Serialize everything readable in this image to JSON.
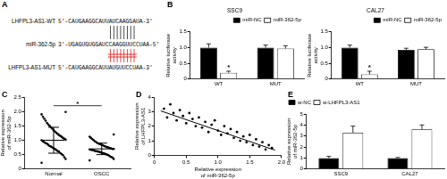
{
  "panel_A": {
    "panel": "A",
    "rows": [
      {
        "label": "LHFPL3-AS1-WT",
        "sequence": "5'-CAUGAAGGCAUUAUCAAGGAUA-3'"
      },
      {
        "label": "miR-362-5p",
        "sequence": "3'-UGAGUGUGGAUCCAAGGUUCCUAA-5'"
      },
      {
        "label": "LHFPL3-AS1-MUT",
        "sequence": "5'-CAUGAAGGCAUUAUGUUCCUAA-3'"
      }
    ]
  },
  "chart_data": [
    {
      "panel": "B",
      "type": "bar",
      "title": "SSC9",
      "categories": [
        "WT",
        "MUT"
      ],
      "series": [
        {
          "name": "miR-NC",
          "color": "#000000",
          "values": [
            1.0,
            1.0
          ],
          "errors": [
            0.12,
            0.08
          ]
        },
        {
          "name": "miR-362-5p",
          "color": "#ffffff",
          "values": [
            0.2,
            0.97
          ],
          "errors": [
            0.05,
            0.09
          ]
        }
      ],
      "y_label": "Relative luciferase activity",
      "ylim": [
        0,
        1.5
      ],
      "yticks": [
        0,
        0.5,
        {
          "value": 1,
          "label": "1.0"
        },
        1.5
      ],
      "grid": false,
      "legend": "top-right",
      "annotations": [
        {
          "text": "*",
          "category": "WT",
          "series": "miR-362-5p",
          "y": 0.32
        }
      ]
    },
    {
      "type": "bar",
      "title": "CAL27",
      "categories": [
        "WT",
        "MUT"
      ],
      "series": [
        {
          "name": "miR-NC",
          "color": "#000000",
          "values": [
            1.0,
            0.93
          ],
          "errors": [
            0.08,
            0.05
          ]
        },
        {
          "name": "miR-362-5p",
          "color": "#ffffff",
          "values": [
            0.15,
            0.95
          ],
          "errors": [
            0.1,
            0.06
          ]
        }
      ],
      "y_label": "Relative luciferase activity",
      "ylim": [
        0,
        1.5
      ],
      "yticks": [
        0,
        0.5,
        {
          "value": 1,
          "label": "1.0"
        },
        1.5
      ],
      "grid": false,
      "legend": "top-right",
      "annotations": [
        {
          "text": "*",
          "category": "WT",
          "series": "miR-362-5p",
          "y": 0.32
        }
      ]
    },
    {
      "panel": "C",
      "type": "scatter",
      "categories": [
        "Normal",
        "OSCC"
      ],
      "values": [
        [
          0.22,
          0.35,
          0.41,
          0.48,
          0.52,
          0.55,
          0.6,
          0.63,
          0.66,
          0.7,
          0.72,
          0.75,
          0.78,
          0.8,
          0.84,
          0.88,
          0.9,
          0.93,
          0.96,
          1.0,
          1.02,
          1.05,
          1.08,
          1.12,
          1.15,
          1.18,
          1.22,
          1.26,
          1.3,
          1.35,
          1.4,
          1.45,
          1.5,
          1.55,
          1.6,
          1.68,
          1.75,
          1.82,
          1.9,
          1.98
        ],
        [
          0.3,
          0.35,
          0.4,
          0.42,
          0.45,
          0.48,
          0.5,
          0.52,
          0.54,
          0.55,
          0.57,
          0.58,
          0.6,
          0.61,
          0.62,
          0.63,
          0.65,
          0.66,
          0.67,
          0.68,
          0.7,
          0.7,
          0.72,
          0.73,
          0.75,
          0.76,
          0.78,
          0.8,
          0.82,
          0.84,
          0.86,
          0.88,
          0.9,
          0.93,
          0.96,
          1.0,
          1.04,
          1.08,
          1.12,
          1.2
        ]
      ],
      "mean": [
        1.0,
        0.7
      ],
      "sd": [
        0.45,
        0.2
      ],
      "color": "#000000",
      "marker": "circle",
      "y_label": "Relative expression of miR-362-5p",
      "ylim": [
        0,
        2.5
      ],
      "yticks": [
        0,
        0.5,
        {
          "value": 1,
          "label": "1.0"
        },
        1.5,
        {
          "value": 2,
          "label": "2.0"
        },
        2.5
      ],
      "grid": false,
      "annotations": [
        {
          "text": "*",
          "between": [
            "Normal",
            "OSCC"
          ],
          "y": 2.2
        }
      ]
    },
    {
      "panel": "D",
      "type": "scatter",
      "series": [
        {
          "type": "scatter",
          "color": "#000000",
          "marker": "circle",
          "x": [
            0.15,
            0.2,
            0.25,
            0.3,
            0.35,
            0.4,
            0.45,
            0.5,
            0.55,
            0.6,
            0.65,
            0.7,
            0.75,
            0.8,
            0.85,
            0.9,
            0.95,
            1.0,
            1.05,
            1.1,
            1.15,
            1.2,
            1.25,
            1.3,
            1.35,
            1.4,
            1.45,
            1.5,
            1.55,
            1.6,
            1.65,
            1.7,
            1.75,
            1.8,
            1.85
          ],
          "values": [
            3.2,
            2.6,
            3.5,
            2.9,
            2.4,
            3.1,
            2.7,
            2.2,
            2.9,
            2.5,
            2.0,
            2.6,
            1.9,
            2.3,
            1.6,
            2.1,
            2.4,
            1.7,
            1.4,
            2.0,
            1.5,
            1.8,
            1.2,
            1.6,
            1.0,
            1.3,
            0.9,
            1.4,
            0.7,
            1.1,
            0.6,
            0.9,
            0.4,
            0.7,
            0.5
          ]
        },
        {
          "type": "line",
          "color": "#000000",
          "line_style": "solid",
          "x": [
            0.1,
            1.9
          ],
          "values": [
            3.05,
            0.35
          ]
        }
      ],
      "x_label": "Relative expression of miR-362-5p",
      "y_label": "Relative expression of LHFPL3-AS1",
      "xlim": [
        0,
        2
      ],
      "xticks": [
        0,
        0.5,
        {
          "value": 1,
          "label": "1.0"
        },
        1.5,
        {
          "value": 2,
          "label": "2.0"
        }
      ],
      "ylim": [
        0,
        4
      ],
      "yticks": [
        0,
        1,
        2,
        3,
        4
      ],
      "grid": false
    },
    {
      "panel": "E",
      "type": "bar",
      "categories": [
        "SSC9",
        "CAL27"
      ],
      "series": [
        {
          "name": "si-NC",
          "color": "#000000",
          "values": [
            1.0,
            1.0
          ],
          "errors": [
            0.15,
            0.05
          ]
        },
        {
          "name": "si-LHFPL3-AS1",
          "color": "#ffffff",
          "values": [
            3.3,
            3.6
          ],
          "errors": [
            0.6,
            0.4
          ]
        }
      ],
      "y_label": "Relative expression of miR-362-5p",
      "ylim": [
        0,
        5
      ],
      "yticks": [
        0,
        1,
        2,
        3,
        4,
        5
      ],
      "grid": false,
      "legend": "top-left"
    }
  ]
}
